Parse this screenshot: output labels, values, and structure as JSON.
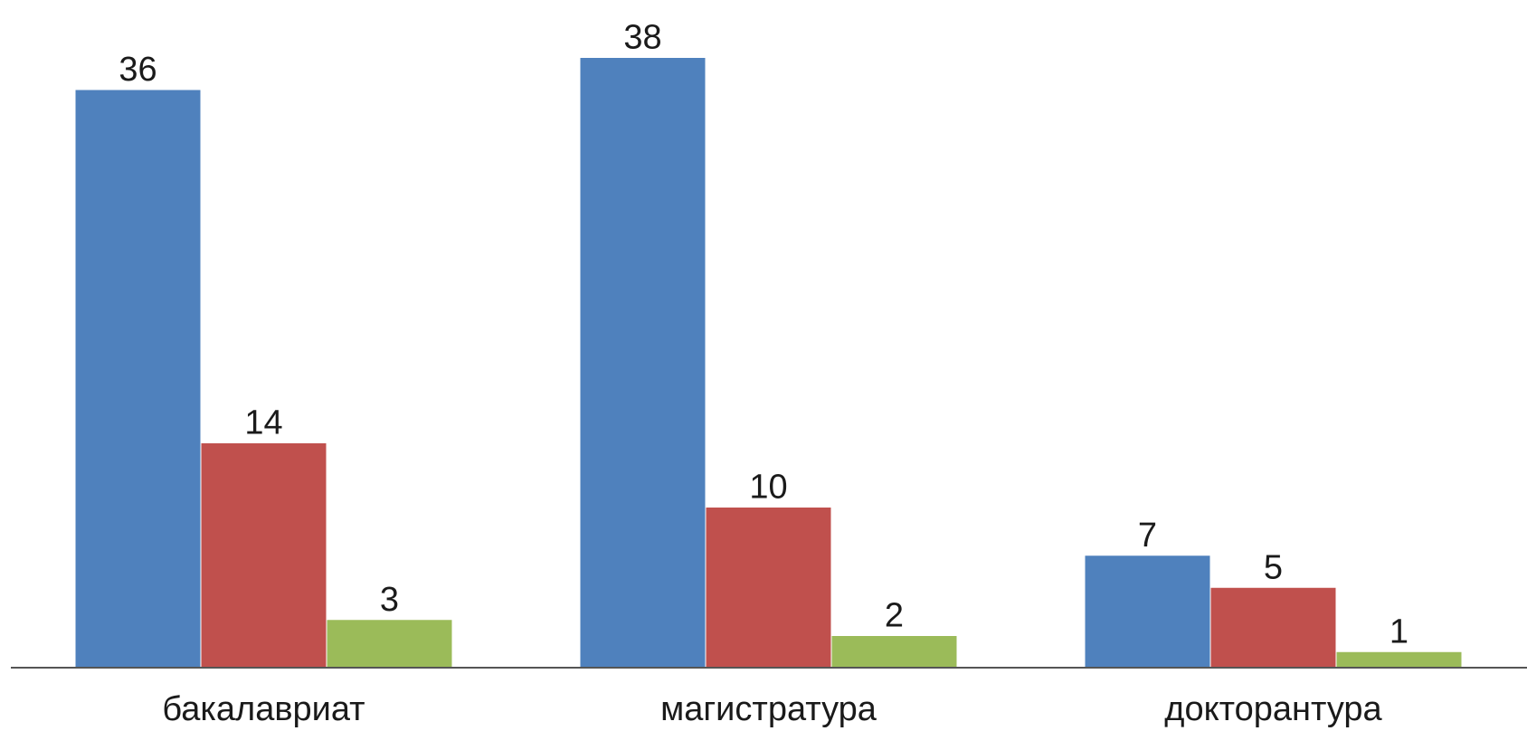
{
  "chart_data": {
    "type": "bar",
    "categories": [
      "бакалавриат",
      "магистратура",
      "докторантура"
    ],
    "series": [
      {
        "values": [
          36,
          38,
          7
        ],
        "color": "#4F81BD"
      },
      {
        "values": [
          14,
          10,
          5
        ],
        "color": "#C0504D"
      },
      {
        "values": [
          3,
          2,
          1
        ],
        "color": "#9BBB59"
      }
    ],
    "ylim": [
      0,
      40
    ],
    "grid": false,
    "data_labels": true
  }
}
